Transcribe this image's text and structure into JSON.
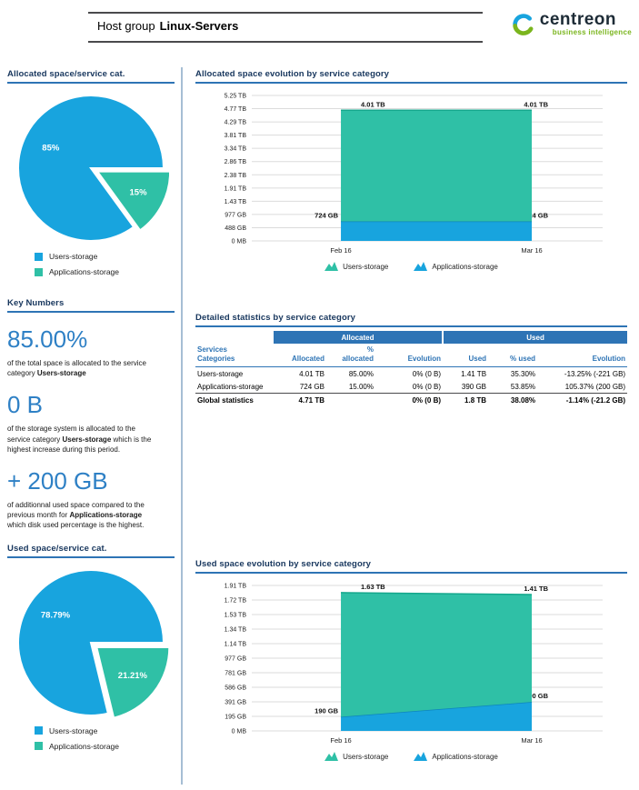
{
  "colors": {
    "blue": "#18A4DE",
    "teal": "#2FC0A6",
    "blue_edge": "#0D85BD",
    "teal_edge": "#14A78C",
    "accent": "#2E74B5",
    "grid": "#DBDBDB",
    "heading": "#17365D",
    "big_number": "#2E80C5",
    "logo_green": "#7AB51D"
  },
  "header": {
    "title_prefix": "Host group",
    "title_name": "Linux-Servers",
    "logo_text": "centreon",
    "logo_subtext": "business intelligence"
  },
  "key_numbers": {
    "heading": "Key Numbers",
    "items": [
      {
        "value": "85.00%",
        "text": [
          {
            "t": "of the total space is allocated to the service category "
          },
          {
            "t": "Users-storage",
            "b": true
          }
        ]
      },
      {
        "value": "0 B",
        "text": [
          {
            "t": "of the storage system is allocated to the service category "
          },
          {
            "t": "Users-storage",
            "b": true
          },
          {
            "t": " which is the highest increase during this period."
          }
        ]
      },
      {
        "value": "+ 200 GB",
        "text": [
          {
            "t": "of additionnal used space compared to the previous month for "
          },
          {
            "t": "Applications-storage",
            "b": true
          },
          {
            "t": " which disk used percentage is the highest."
          }
        ]
      }
    ]
  },
  "table": {
    "heading": "Detailed statistics by service category",
    "group_headers": [
      "Allocated",
      "Used"
    ],
    "columns": [
      "Services\nCategories",
      "Allocated",
      "%\nallocated",
      "Evolution",
      "Used",
      "% used",
      "Evolution"
    ],
    "rows": [
      [
        "Users-storage",
        "4.01 TB",
        "85.00%",
        "0% (0 B)",
        "1.41 TB",
        "35.30%",
        "-13.25% (-221 GB)"
      ],
      [
        "Applications-storage",
        "724 GB",
        "15.00%",
        "0% (0 B)",
        "390 GB",
        "53.85%",
        "105.37% (200 GB)"
      ],
      [
        "Global statistics",
        "4.71 TB",
        "",
        "0% (0 B)",
        "1.8 TB",
        "38.08%",
        "-1.14% (-21.2 GB)"
      ]
    ]
  },
  "chart_data": [
    {
      "type": "pie",
      "title": "Allocated space/service cat.",
      "slices": [
        {
          "name": "Users-storage",
          "pct": 85,
          "display": "85%",
          "color_key": "blue"
        },
        {
          "name": "Applications-storage",
          "pct": 15,
          "display": "15%",
          "color_key": "teal",
          "explode": true
        }
      ],
      "legend": [
        {
          "label": "Users-storage",
          "color_key": "blue"
        },
        {
          "label": "Applications-storage",
          "color_key": "teal"
        }
      ]
    },
    {
      "type": "area",
      "title": "Allocated space evolution by service category",
      "x": [
        "Feb 16",
        "Mar 16"
      ],
      "y_ticks_top_down": [
        "5.25 TB",
        "4.77 TB",
        "4.29 TB",
        "3.81 TB",
        "3.34 TB",
        "2.86 TB",
        "2.38 TB",
        "1.91 TB",
        "1.43 TB",
        "977 GB",
        "488 GB",
        "0 MB"
      ],
      "y_max_gb": 5376,
      "series": [
        {
          "name": "Applications-storage",
          "color_key": "blue",
          "values_gb": [
            724,
            724
          ],
          "point_labels": [
            "724 GB",
            "724 GB"
          ]
        },
        {
          "name": "Users-storage",
          "color_key": "teal",
          "values_gb": [
            4106,
            4106
          ],
          "point_labels": [
            "4.01 TB",
            "4.01 TB"
          ]
        }
      ],
      "legend": [
        {
          "label": "Users-storage",
          "color_key": "teal"
        },
        {
          "label": "Applications-storage",
          "color_key": "blue"
        }
      ]
    },
    {
      "type": "pie",
      "title": "Used space/service cat.",
      "slices": [
        {
          "name": "Users-storage",
          "pct": 78.79,
          "display": "78.79%",
          "color_key": "blue"
        },
        {
          "name": "Applications-storage",
          "pct": 21.21,
          "display": "21.21%",
          "color_key": "teal",
          "explode": true
        }
      ],
      "legend": [
        {
          "label": "Users-storage",
          "color_key": "blue"
        },
        {
          "label": "Applications-storage",
          "color_key": "teal"
        }
      ]
    },
    {
      "type": "area",
      "title": "Used space evolution by service category",
      "x": [
        "Feb 16",
        "Mar 16"
      ],
      "y_ticks_top_down": [
        "1.91 TB",
        "1.72 TB",
        "1.53 TB",
        "1.34 TB",
        "1.14 TB",
        "977 GB",
        "781 GB",
        "586 GB",
        "391 GB",
        "195 GB",
        "0 MB"
      ],
      "y_max_gb": 1956,
      "series": [
        {
          "name": "Applications-storage",
          "color_key": "blue",
          "values_gb": [
            190,
            390
          ],
          "point_labels": [
            "190 GB",
            "390 GB"
          ]
        },
        {
          "name": "Users-storage",
          "color_key": "teal",
          "values_gb": [
            1669,
            1444
          ],
          "point_labels": [
            "1.63 TB",
            "1.41 TB"
          ]
        }
      ],
      "legend": [
        {
          "label": "Users-storage",
          "color_key": "teal"
        },
        {
          "label": "Applications-storage",
          "color_key": "blue"
        }
      ]
    }
  ]
}
